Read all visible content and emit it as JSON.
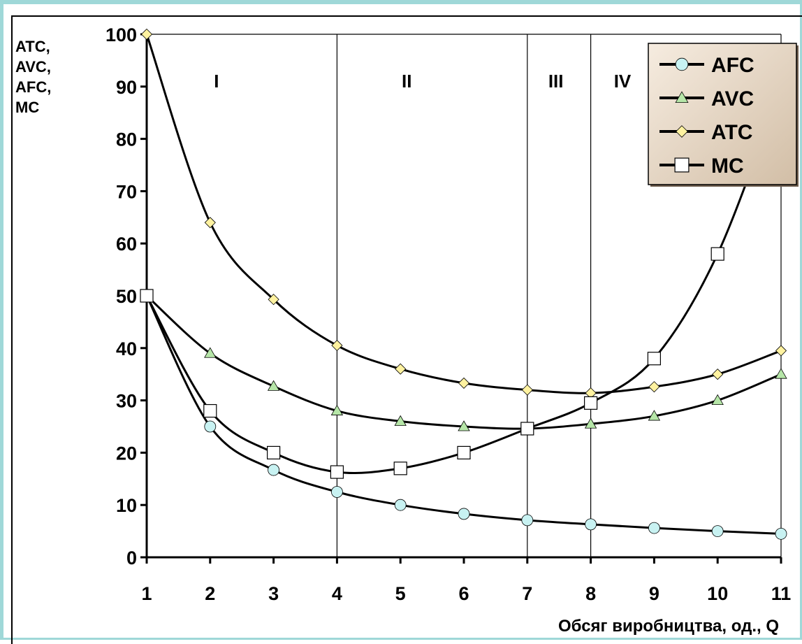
{
  "chart_data": {
    "type": "line",
    "title": "",
    "ylabel_lines": [
      "ATC,",
      "AVC,",
      "AFC,",
      "MC"
    ],
    "xlabel": "Обсяг виробництва, од., Q",
    "x": [
      1,
      2,
      3,
      4,
      5,
      6,
      7,
      8,
      9,
      10,
      11
    ],
    "xlim": [
      1,
      11
    ],
    "ylim": [
      0,
      100
    ],
    "yticks": [
      0,
      10,
      20,
      30,
      40,
      50,
      60,
      70,
      80,
      90,
      100
    ],
    "xticks": [
      1,
      2,
      3,
      4,
      5,
      6,
      7,
      8,
      9,
      10,
      11
    ],
    "zones": [
      {
        "label": "I",
        "x": 2.1
      },
      {
        "label": "II",
        "x": 5.1
      },
      {
        "label": "III",
        "x": 7.45
      },
      {
        "label": "IV",
        "x": 8.5
      }
    ],
    "zone_boundaries": [
      4,
      7,
      8
    ],
    "legend_position": "top-right",
    "series": [
      {
        "name": "AFC",
        "marker": "circle",
        "marker_color": "#c8f2f2",
        "values": [
          50,
          25,
          16.7,
          12.5,
          10,
          8.3,
          7.1,
          6.3,
          5.6,
          5,
          4.5
        ]
      },
      {
        "name": "AVC",
        "marker": "triangle",
        "marker_color": "#b6e6a8",
        "values": [
          50,
          39,
          32.7,
          28,
          26,
          25,
          24.6,
          25.5,
          27,
          30,
          35
        ]
      },
      {
        "name": "ATC",
        "marker": "diamond",
        "marker_color": "#fff2a0",
        "values": [
          100,
          64,
          49.3,
          40.5,
          36,
          33.3,
          32,
          31.4,
          32.6,
          35,
          39.5
        ]
      },
      {
        "name": "MC",
        "marker": "square",
        "marker_color": "#ffffff",
        "values": [
          50,
          28,
          20,
          16.3,
          17,
          20,
          24.6,
          29.5,
          38,
          58,
          90
        ]
      }
    ]
  }
}
